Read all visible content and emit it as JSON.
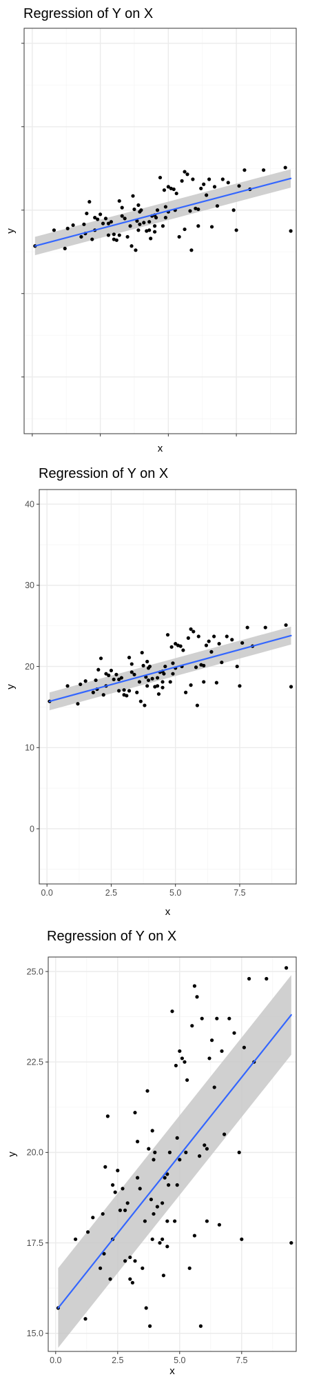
{
  "chart_data": [
    {
      "type": "scatter",
      "title": "Regression of Y on X",
      "xlabel": "x",
      "ylabel": "y",
      "show_x_tick_labels": false,
      "show_y_tick_labels": false,
      "xlim": [
        -0.3,
        9.7
      ],
      "ylim": [
        -6.8,
        41.8
      ],
      "xticks": [
        0,
        2.5,
        5,
        7.5
      ],
      "yticks": [
        0,
        10,
        20,
        30,
        40
      ],
      "grid": true,
      "fit_line": {
        "x": [
          0.1,
          9.5
        ],
        "y": [
          15.7,
          23.8
        ],
        "ci_start": [
          14.6,
          16.8
        ],
        "ci_end": [
          22.7,
          24.9
        ]
      }
    },
    {
      "type": "scatter",
      "title": "Regression of Y on X",
      "xlabel": "x",
      "ylabel": "y",
      "show_x_tick_labels": true,
      "show_y_tick_labels": true,
      "xlim": [
        -0.3,
        9.7
      ],
      "ylim": [
        -6.8,
        41.8
      ],
      "xticks": [
        0,
        2.5,
        5,
        7.5
      ],
      "yticks": [
        0,
        10,
        20,
        30,
        40
      ],
      "xtick_labels": [
        "0.0",
        "2.5",
        "5.0",
        "7.5"
      ],
      "ytick_labels": [
        "0",
        "10",
        "20",
        "30",
        "40"
      ],
      "grid": true,
      "fit_line": {
        "x": [
          0.1,
          9.5
        ],
        "y": [
          15.7,
          23.8
        ],
        "ci_start": [
          14.6,
          16.8
        ],
        "ci_end": [
          22.7,
          24.9
        ]
      }
    },
    {
      "type": "scatter",
      "title": "Regression of Y on X",
      "xlabel": "x",
      "ylabel": "y",
      "show_x_tick_labels": true,
      "show_y_tick_labels": true,
      "xlim": [
        -0.3,
        9.7
      ],
      "ylim": [
        14.5,
        25.4
      ],
      "xticks": [
        0,
        2.5,
        5,
        7.5
      ],
      "yticks": [
        15,
        17.5,
        20,
        22.5,
        25
      ],
      "xtick_labels": [
        "0.0",
        "2.5",
        "5.0",
        "7.5"
      ],
      "ytick_labels": [
        "15.0",
        "17.5",
        "20.0",
        "22.5",
        "25.0"
      ],
      "grid": true,
      "fit_line": {
        "x": [
          0.1,
          9.5
        ],
        "y": [
          15.7,
          23.8
        ],
        "ci_start": [
          14.6,
          16.8
        ],
        "ci_end": [
          22.7,
          24.9
        ]
      }
    }
  ],
  "points": {
    "x": [
      0.1,
      0.8,
      1.2,
      1.3,
      1.5,
      1.8,
      1.9,
      1.95,
      2.1,
      2.2,
      2.3,
      2.3,
      2.4,
      2.5,
      2.6,
      2.7,
      2.8,
      2.9,
      3.0,
      3.1,
      3.2,
      3.2,
      3.3,
      3.4,
      3.5,
      3.6,
      3.65,
      3.7,
      3.75,
      3.8,
      3.85,
      3.9,
      3.95,
      4.0,
      4.1,
      4.2,
      4.3,
      4.35,
      4.4,
      4.5,
      4.55,
      4.6,
      4.7,
      4.8,
      4.85,
      4.9,
      5.0,
      5.1,
      5.2,
      5.25,
      5.3,
      5.4,
      5.5,
      5.6,
      5.7,
      5.8,
      5.85,
      5.9,
      6.0,
      6.1,
      6.2,
      6.3,
      6.4,
      6.5,
      6.6,
      6.7,
      6.8,
      7.0,
      7.2,
      7.4,
      7.6,
      7.8,
      8.0,
      8.5,
      9.3,
      9.5,
      2.0,
      2.8,
      3.0,
      3.3,
      4.3,
      4.5,
      4.9,
      5.6,
      6.1,
      7.5,
      3.9,
      3.95,
      4.5,
      5.0
    ],
    "y": [
      15.7,
      17.6,
      15.4,
      17.8,
      18.2,
      16.8,
      18.3,
      17.2,
      21.0,
      16.5,
      17.6,
      19.1,
      18.9,
      19.5,
      18.4,
      19.0,
      17.0,
      18.6,
      17.1,
      16.4,
      21.1,
      17.0,
      20.3,
      19.0,
      16.8,
      18.1,
      15.7,
      21.7,
      20.1,
      15.2,
      18.7,
      17.6,
      18.3,
      20.0,
      18.5,
      17.5,
      18.6,
      16.6,
      19.3,
      17.4,
      19.1,
      20.0,
      23.9,
      18.1,
      22.4,
      20.4,
      22.8,
      22.6,
      22.5,
      20.0,
      22.0,
      16.8,
      23.5,
      24.6,
      24.3,
      19.9,
      15.2,
      23.7,
      20.2,
      18.1,
      22.6,
      23.1,
      21.8,
      23.7,
      18.0,
      22.8,
      20.5,
      23.7,
      23.3,
      20.0,
      22.9,
      24.8,
      22.5,
      24.8,
      25.1,
      17.5,
      19.6,
      18.4,
      16.5,
      19.3,
      17.6,
      19.4,
      19.1,
      17.7,
      20.1,
      17.6,
      20.6,
      19.8,
      18.1,
      19.8
    ]
  },
  "colors": {
    "point": "#000000",
    "fit_line": "#3366ff",
    "ci_band": "#c8c8c8",
    "grid_major": "#ebebeb",
    "grid_minor": "#f5f5f5",
    "panel_border": "#333333",
    "tick_label": "#4d4d4d"
  }
}
